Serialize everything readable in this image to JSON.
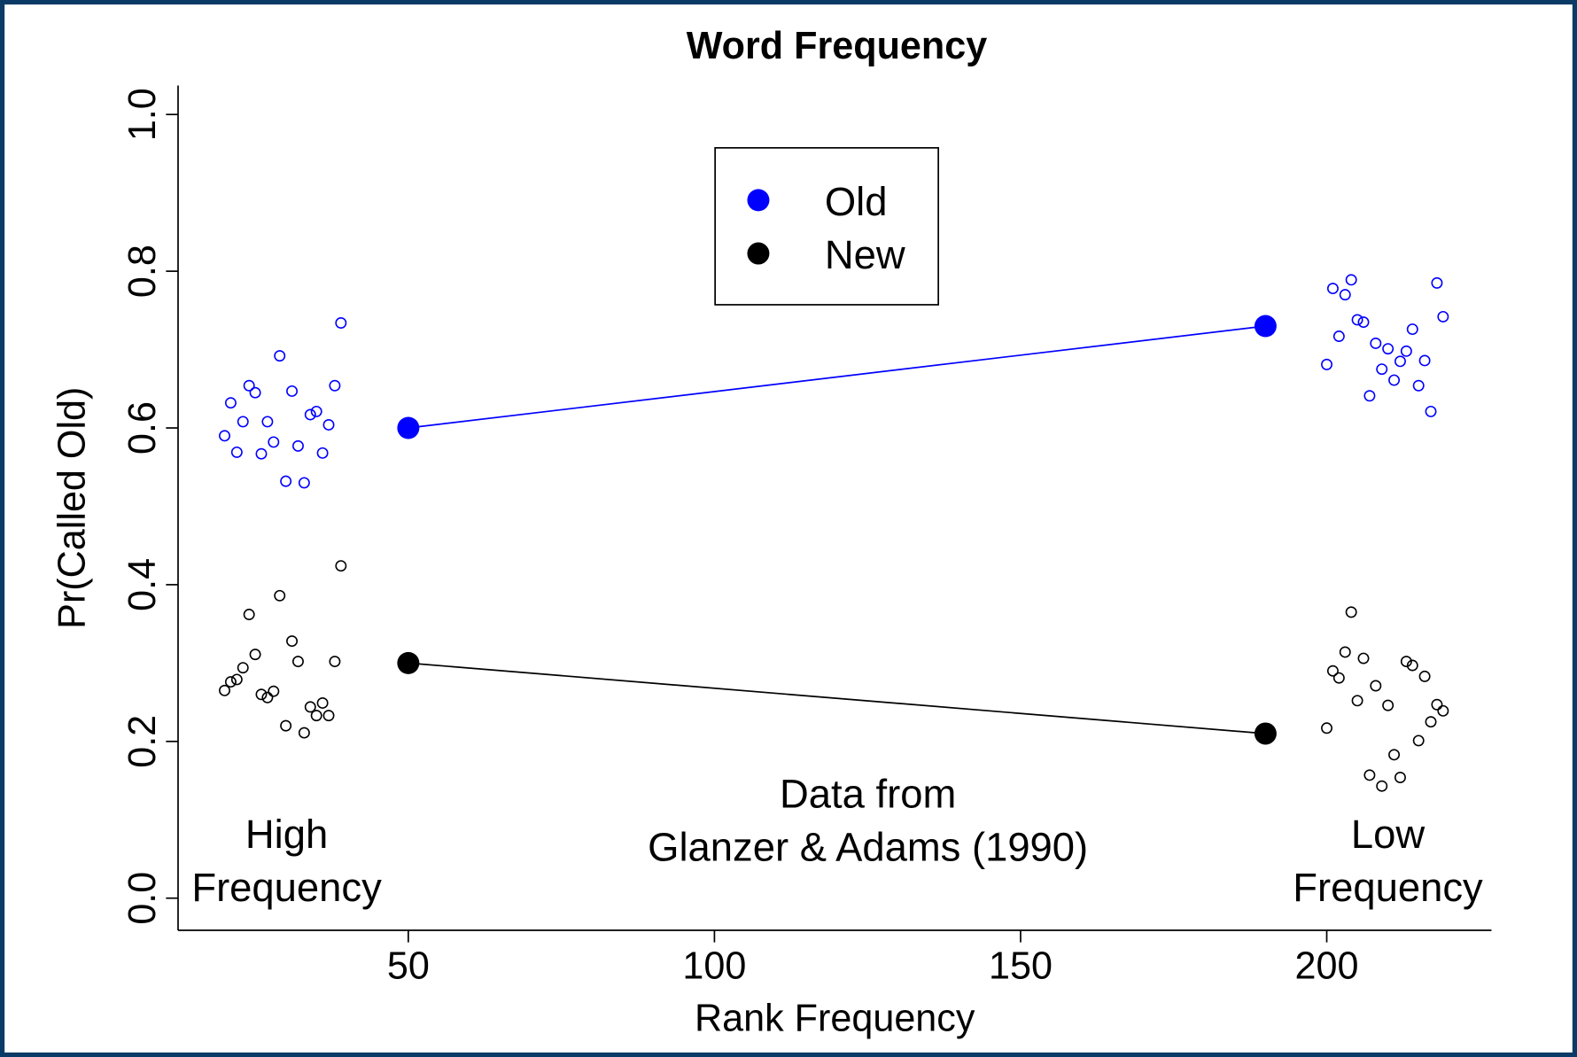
{
  "chart_data": {
    "type": "line",
    "title": "Word Frequency",
    "x_label": "Rank Frequency",
    "y_label": "Pr(Called Old)",
    "xlim": [
      12.4,
      226.9
    ],
    "ylim": [
      -0.041,
      1.037
    ],
    "xticks": [
      50,
      100,
      150,
      200
    ],
    "yticks": [
      {
        "value": 0,
        "label": "0.0"
      },
      0.2,
      0.4,
      0.6,
      0.8,
      {
        "value": 1,
        "label": "1.0"
      }
    ],
    "series": [
      {
        "name": "Old",
        "color": "#0000ff",
        "x": [
          50,
          190
        ],
        "values": [
          0.6,
          0.73
        ],
        "points": {
          "x": [
            20,
            21,
            22,
            23,
            24,
            25,
            26,
            27,
            28,
            29,
            30,
            31,
            32,
            33,
            34,
            35,
            36,
            37,
            38,
            39,
            200,
            201,
            202,
            203,
            204,
            205,
            206,
            207,
            208,
            209,
            210,
            211,
            212,
            213,
            214,
            215,
            216,
            217,
            218,
            219
          ],
          "values": [
            0.59,
            0.632,
            0.569,
            0.608,
            0.654,
            0.645,
            0.567,
            0.608,
            0.582,
            0.692,
            0.532,
            0.647,
            0.577,
            0.53,
            0.617,
            0.621,
            0.568,
            0.604,
            0.654,
            0.734,
            0.681,
            0.778,
            0.717,
            0.77,
            0.789,
            0.738,
            0.735,
            0.641,
            0.708,
            0.675,
            0.701,
            0.661,
            0.685,
            0.698,
            0.726,
            0.654,
            0.686,
            0.621,
            0.785,
            0.742
          ]
        }
      },
      {
        "name": "New",
        "color": "#000000",
        "x": [
          50,
          190
        ],
        "values": [
          0.3,
          0.21
        ],
        "points": {
          "x": [
            20,
            21,
            22,
            23,
            24,
            25,
            26,
            27,
            28,
            29,
            30,
            31,
            32,
            33,
            34,
            35,
            36,
            37,
            38,
            39,
            200,
            201,
            202,
            203,
            204,
            205,
            206,
            207,
            208,
            209,
            210,
            211,
            212,
            213,
            214,
            215,
            216,
            217,
            218,
            219
          ],
          "values": [
            0.265,
            0.276,
            0.279,
            0.294,
            0.362,
            0.311,
            0.26,
            0.256,
            0.264,
            0.386,
            0.22,
            0.328,
            0.302,
            0.211,
            0.244,
            0.233,
            0.249,
            0.233,
            0.302,
            0.424,
            0.217,
            0.29,
            0.281,
            0.314,
            0.365,
            0.252,
            0.306,
            0.157,
            0.271,
            0.143,
            0.246,
            0.183,
            0.154,
            0.302,
            0.297,
            0.201,
            0.283,
            0.225,
            0.247,
            0.239
          ]
        }
      }
    ],
    "annotations": [
      {
        "lines": [
          "High",
          "Frequency"
        ]
      },
      {
        "lines": [
          "Data from",
          "Glanzer & Adams (1990)"
        ]
      },
      {
        "lines": [
          "Low",
          "Frequency"
        ]
      }
    ]
  }
}
